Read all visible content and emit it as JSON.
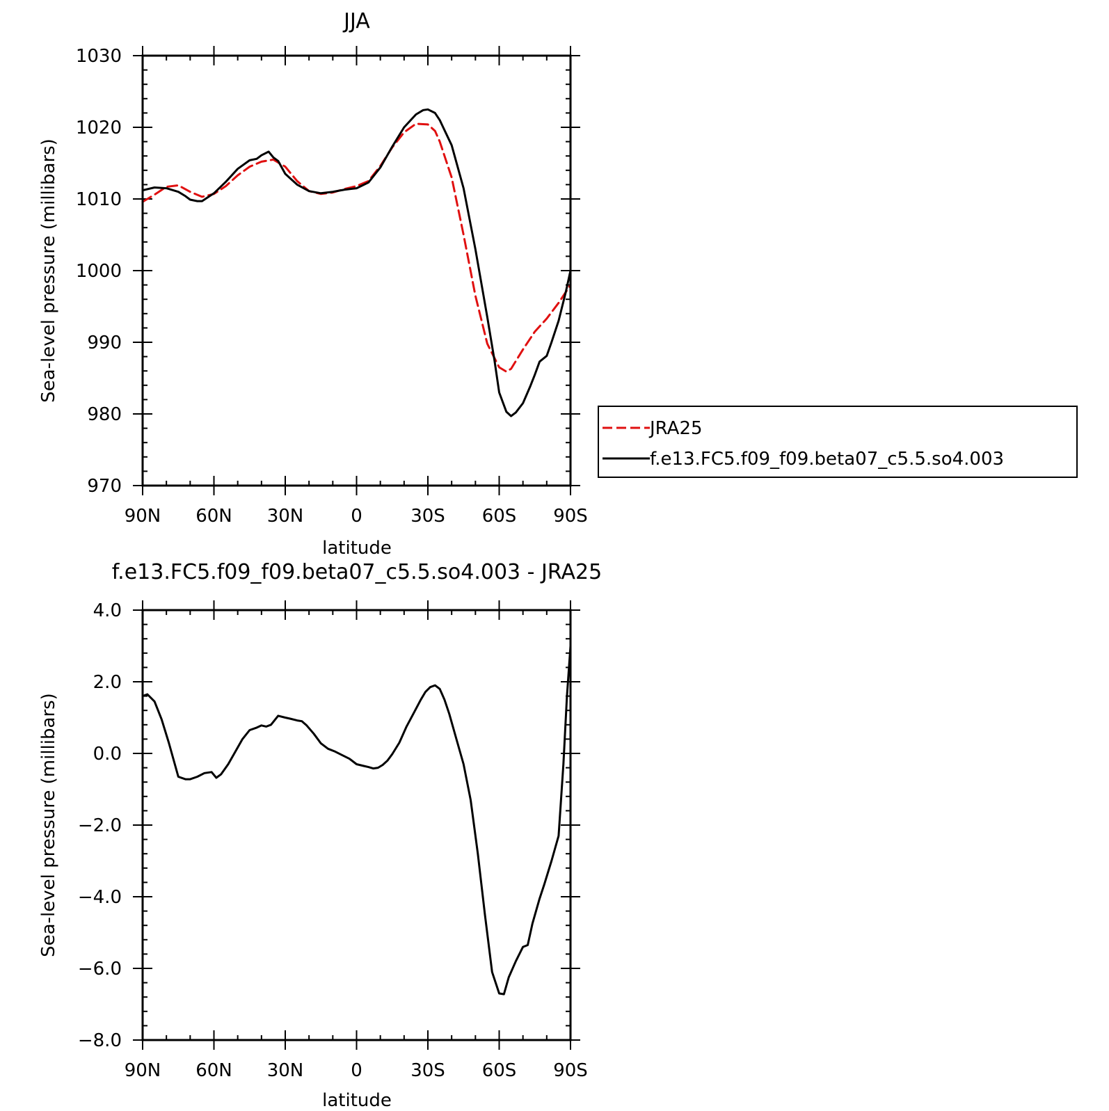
{
  "colors": {
    "JRA25": "#e01010",
    "model": "#000000",
    "axes": "#000000",
    "background": "#ffffff"
  },
  "chart_data": [
    {
      "type": "line",
      "title": "JJA",
      "xlabel": "latitude",
      "ylabel": "Sea-level pressure (millibars)",
      "xlim": [
        90,
        -90
      ],
      "ylim": [
        970,
        1030
      ],
      "xticks": [
        90,
        60,
        30,
        0,
        -30,
        -60,
        -90
      ],
      "xtick_labels": [
        "90N",
        "60N",
        "30N",
        "0",
        "30S",
        "60S",
        "90S"
      ],
      "yticks": [
        970,
        980,
        990,
        1000,
        1010,
        1020,
        1030
      ],
      "ytick_labels": [
        "970",
        "980",
        "990",
        "1000",
        "1010",
        "1020",
        "1030"
      ],
      "legend": {
        "placement": "right",
        "entries": [
          "JRA25",
          "f.e13.FC5.f09_f09.beta07_c5.5.so4.003"
        ]
      },
      "series": [
        {
          "name": "JRA25",
          "color": "#e01010",
          "dash": "dashed",
          "x": [
            90,
            85,
            80,
            75,
            70,
            65,
            60,
            55,
            50,
            45,
            40,
            35,
            30,
            25,
            20,
            15,
            10,
            5,
            0,
            -5,
            -10,
            -15,
            -20,
            -25,
            -30,
            -33,
            -35,
            -40,
            -45,
            -50,
            -55,
            -60,
            -63,
            -65,
            -70,
            -75,
            -80,
            -85,
            -90
          ],
          "y": [
            1009.6,
            1010.6,
            1011.7,
            1011.9,
            1011.0,
            1010.3,
            1010.7,
            1011.8,
            1013.3,
            1014.5,
            1015.2,
            1015.5,
            1014.5,
            1012.5,
            1011.1,
            1010.7,
            1010.9,
            1011.4,
            1011.8,
            1012.5,
            1014.6,
            1017.2,
            1019.3,
            1020.5,
            1020.4,
            1019.5,
            1018.0,
            1013.0,
            1005.0,
            996.5,
            989.8,
            986.5,
            985.9,
            986.3,
            989.0,
            991.5,
            993.3,
            995.5,
            998.0
          ]
        },
        {
          "name": "f.e13.FC5.f09_f09.beta07_c5.5.so4.003",
          "color": "#000000",
          "dash": "solid",
          "x": [
            90,
            85,
            80,
            75,
            72,
            70,
            67,
            65,
            60,
            55,
            50,
            45,
            42,
            40,
            37,
            35,
            33,
            30,
            25,
            20,
            15,
            10,
            5,
            0,
            -5,
            -10,
            -15,
            -20,
            -25,
            -28,
            -30,
            -33,
            -35,
            -40,
            -45,
            -50,
            -55,
            -58,
            -60,
            -63,
            -65,
            -67,
            -70,
            -73,
            -75,
            -77,
            -80,
            -82,
            -85,
            -88,
            -90
          ],
          "y": [
            1011.2,
            1011.6,
            1011.5,
            1011.0,
            1010.4,
            1009.9,
            1009.7,
            1009.7,
            1010.8,
            1012.4,
            1014.2,
            1015.4,
            1015.6,
            1016.1,
            1016.6,
            1015.8,
            1015.3,
            1013.5,
            1012.0,
            1011.1,
            1010.8,
            1011.0,
            1011.3,
            1011.5,
            1012.3,
            1014.4,
            1017.3,
            1020.0,
            1021.8,
            1022.4,
            1022.5,
            1022.0,
            1021.0,
            1017.5,
            1011.5,
            1003.0,
            993.5,
            987.5,
            983.0,
            980.3,
            979.7,
            980.2,
            981.5,
            983.8,
            985.5,
            987.3,
            988.1,
            990.0,
            993.0,
            997.0,
            1000.0
          ]
        }
      ]
    },
    {
      "type": "line",
      "title": "f.e13.FC5.f09_f09.beta07_c5.5.so4.003 - JRA25",
      "xlabel": "latitude",
      "ylabel": "Sea-level pressure (millibars)",
      "xlim": [
        90,
        -90
      ],
      "ylim": [
        -8.0,
        4.0
      ],
      "xticks": [
        90,
        60,
        30,
        0,
        -30,
        -60,
        -90
      ],
      "xtick_labels": [
        "90N",
        "60N",
        "30N",
        "0",
        "30S",
        "60S",
        "90S"
      ],
      "yticks": [
        -8.0,
        -6.0,
        -4.0,
        -2.0,
        0.0,
        2.0,
        4.0
      ],
      "ytick_labels": [
        "−8.0",
        "−6.0",
        "−4.0",
        "−2.0",
        "0.0",
        "2.0",
        "4.0"
      ],
      "series": [
        {
          "color": "#000000",
          "dash": "solid",
          "x": [
            90,
            88,
            85,
            82,
            79,
            75,
            72,
            70,
            67,
            64,
            61,
            59,
            57,
            54,
            51,
            48,
            45,
            42,
            40,
            38,
            36,
            33,
            30,
            28,
            25,
            23,
            21,
            18,
            15,
            12,
            9,
            6,
            3,
            0,
            -3,
            -5,
            -7,
            -9,
            -11,
            -13,
            -15,
            -18,
            -21,
            -24,
            -27,
            -29,
            -31,
            -33,
            -35,
            -37,
            -39,
            -42,
            -45,
            -48,
            -51,
            -54,
            -57,
            -60,
            -62,
            -64,
            -67,
            -70,
            -72,
            -74,
            -77,
            -79,
            -82,
            -85,
            -87,
            -88.5,
            -90
          ],
          "y": [
            1.6,
            1.65,
            1.45,
            0.95,
            0.3,
            -0.65,
            -0.72,
            -0.72,
            -0.65,
            -0.55,
            -0.52,
            -0.68,
            -0.58,
            -0.3,
            0.05,
            0.4,
            0.65,
            0.72,
            0.78,
            0.75,
            0.8,
            1.05,
            1.0,
            0.97,
            0.92,
            0.9,
            0.78,
            0.55,
            0.28,
            0.13,
            0.05,
            -0.05,
            -0.15,
            -0.3,
            -0.35,
            -0.38,
            -0.42,
            -0.4,
            -0.32,
            -0.2,
            -0.02,
            0.3,
            0.75,
            1.12,
            1.5,
            1.72,
            1.85,
            1.9,
            1.8,
            1.5,
            1.1,
            0.4,
            -0.3,
            -1.3,
            -2.8,
            -4.5,
            -6.1,
            -6.7,
            -6.72,
            -6.25,
            -5.8,
            -5.4,
            -5.35,
            -4.75,
            -4.05,
            -3.65,
            -3.0,
            -2.3,
            -0.3,
            1.6,
            3.0
          ]
        }
      ]
    }
  ]
}
